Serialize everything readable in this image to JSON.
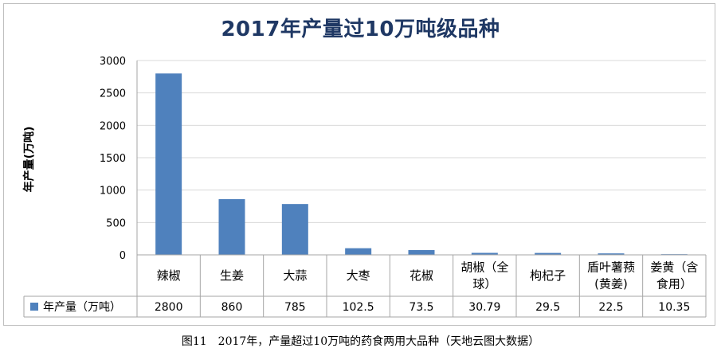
{
  "chart_data": {
    "type": "bar",
    "title": "2017年产量过10万吨级品种",
    "ylabel": "年产量(万吨)",
    "xlabel": "",
    "ylim": [
      0,
      3000
    ],
    "yticks": [
      0,
      500,
      1000,
      1500,
      2000,
      2500,
      3000
    ],
    "grid": true,
    "legend": "data-table",
    "categories": [
      [
        "辣椒"
      ],
      [
        "生姜"
      ],
      [
        "大蒜"
      ],
      [
        "大枣"
      ],
      [
        "花椒"
      ],
      [
        "胡椒（全",
        "球）"
      ],
      [
        "枸杞子"
      ],
      [
        "盾叶薯蓣",
        "(黄姜)"
      ],
      [
        "姜黄（含",
        "食用）"
      ]
    ],
    "series": [
      {
        "name": "年产量（万吨）",
        "values": [
          2800,
          860,
          785,
          102.5,
          73.5,
          30.79,
          29.5,
          22.5,
          10.35
        ],
        "labels": [
          "2800",
          "860",
          "785",
          "102.5",
          "73.5",
          "30.79",
          "29.5",
          "22.5",
          "10.35"
        ]
      }
    ],
    "colors": {
      "bar": "#4f81bd",
      "grid": "#d9d9d9",
      "axis": "#a6a6a6",
      "title": "#1f3864"
    }
  },
  "caption": "图11　2017年，产量超过10万吨的药食两用大品种（天地云图大数据）"
}
